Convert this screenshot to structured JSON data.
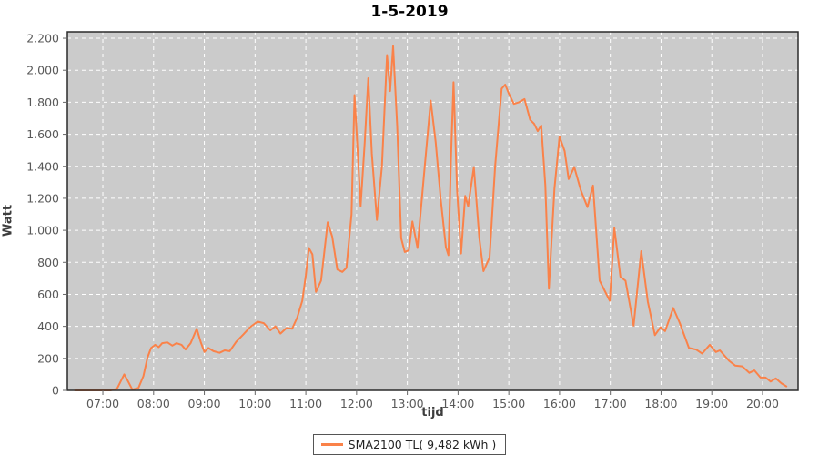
{
  "title": "1-5-2019",
  "legend": {
    "label": "SMA2100 TL( 9,482 kWh )"
  },
  "colors": {
    "series": "#fa8249",
    "plot_background": "#cbcbcb",
    "gridline": "#ffffff",
    "plot_border": "#2b2b2b",
    "tick_label": "#595959",
    "tick_mark": "#666666",
    "page_background": "#ffffff"
  },
  "chart_data": {
    "type": "line",
    "title": "1-5-2019",
    "xlabel": "tijd",
    "ylabel": "Watt",
    "x_unit": "time of day (hours)",
    "y_unit": "Watt",
    "xlim": [
      6.3,
      20.7
    ],
    "ylim": [
      0,
      2240
    ],
    "grid": "white dashed gridlines on gray plot background",
    "legend_position": "bottom-center",
    "x_ticks": [
      {
        "value": 7,
        "label": "07:00"
      },
      {
        "value": 8,
        "label": "08:00"
      },
      {
        "value": 9,
        "label": "09:00"
      },
      {
        "value": 10,
        "label": "10:00"
      },
      {
        "value": 11,
        "label": "11:00"
      },
      {
        "value": 12,
        "label": "12:00"
      },
      {
        "value": 13,
        "label": "13:00"
      },
      {
        "value": 14,
        "label": "14:00"
      },
      {
        "value": 15,
        "label": "15:00"
      },
      {
        "value": 16,
        "label": "16:00"
      },
      {
        "value": 17,
        "label": "17:00"
      },
      {
        "value": 18,
        "label": "18:00"
      },
      {
        "value": 19,
        "label": "19:00"
      },
      {
        "value": 20,
        "label": "20:00"
      }
    ],
    "y_ticks": [
      {
        "value": 0,
        "label": "0"
      },
      {
        "value": 200,
        "label": "200"
      },
      {
        "value": 400,
        "label": "400"
      },
      {
        "value": 600,
        "label": "600"
      },
      {
        "value": 800,
        "label": "800"
      },
      {
        "value": 1000,
        "label": "1.000"
      },
      {
        "value": 1200,
        "label": "1.200"
      },
      {
        "value": 1400,
        "label": "1.400"
      },
      {
        "value": 1600,
        "label": "1.600"
      },
      {
        "value": 1800,
        "label": "1.800"
      },
      {
        "value": 2000,
        "label": "2.000"
      },
      {
        "value": 2200,
        "label": "2.200"
      }
    ],
    "series": [
      {
        "name": "SMA2100 TL( 9,482 kWh )",
        "color": "#fa8249",
        "points": [
          [
            6.45,
            0
          ],
          [
            6.75,
            0
          ],
          [
            7.0,
            0
          ],
          [
            7.15,
            0
          ],
          [
            7.28,
            10
          ],
          [
            7.42,
            100
          ],
          [
            7.5,
            55
          ],
          [
            7.58,
            5
          ],
          [
            7.7,
            15
          ],
          [
            7.8,
            90
          ],
          [
            7.88,
            205
          ],
          [
            7.95,
            265
          ],
          [
            8.03,
            285
          ],
          [
            8.1,
            270
          ],
          [
            8.17,
            295
          ],
          [
            8.27,
            300
          ],
          [
            8.37,
            280
          ],
          [
            8.45,
            295
          ],
          [
            8.55,
            285
          ],
          [
            8.63,
            255
          ],
          [
            8.73,
            295
          ],
          [
            8.85,
            385
          ],
          [
            8.93,
            300
          ],
          [
            9.0,
            240
          ],
          [
            9.08,
            265
          ],
          [
            9.18,
            245
          ],
          [
            9.3,
            235
          ],
          [
            9.4,
            250
          ],
          [
            9.5,
            245
          ],
          [
            9.63,
            305
          ],
          [
            9.77,
            350
          ],
          [
            9.9,
            395
          ],
          [
            10.05,
            430
          ],
          [
            10.17,
            420
          ],
          [
            10.3,
            375
          ],
          [
            10.4,
            400
          ],
          [
            10.5,
            355
          ],
          [
            10.62,
            390
          ],
          [
            10.73,
            385
          ],
          [
            10.83,
            455
          ],
          [
            10.93,
            560
          ],
          [
            11.0,
            720
          ],
          [
            11.06,
            890
          ],
          [
            11.13,
            850
          ],
          [
            11.2,
            615
          ],
          [
            11.3,
            685
          ],
          [
            11.43,
            1050
          ],
          [
            11.52,
            960
          ],
          [
            11.62,
            755
          ],
          [
            11.72,
            740
          ],
          [
            11.8,
            765
          ],
          [
            11.9,
            1100
          ],
          [
            11.96,
            1845
          ],
          [
            12.02,
            1500
          ],
          [
            12.08,
            1150
          ],
          [
            12.16,
            1550
          ],
          [
            12.23,
            1950
          ],
          [
            12.3,
            1480
          ],
          [
            12.4,
            1065
          ],
          [
            12.5,
            1400
          ],
          [
            12.6,
            2095
          ],
          [
            12.66,
            1870
          ],
          [
            12.72,
            2150
          ],
          [
            12.8,
            1650
          ],
          [
            12.88,
            950
          ],
          [
            12.95,
            865
          ],
          [
            13.03,
            875
          ],
          [
            13.1,
            1055
          ],
          [
            13.2,
            890
          ],
          [
            13.32,
            1320
          ],
          [
            13.46,
            1810
          ],
          [
            13.56,
            1550
          ],
          [
            13.66,
            1190
          ],
          [
            13.76,
            895
          ],
          [
            13.81,
            845
          ],
          [
            13.86,
            1450
          ],
          [
            13.91,
            1925
          ],
          [
            13.98,
            1250
          ],
          [
            14.06,
            855
          ],
          [
            14.14,
            1215
          ],
          [
            14.2,
            1150
          ],
          [
            14.31,
            1395
          ],
          [
            14.42,
            950
          ],
          [
            14.5,
            745
          ],
          [
            14.62,
            830
          ],
          [
            14.73,
            1400
          ],
          [
            14.86,
            1885
          ],
          [
            14.93,
            1910
          ],
          [
            15.0,
            1855
          ],
          [
            15.1,
            1790
          ],
          [
            15.2,
            1800
          ],
          [
            15.31,
            1820
          ],
          [
            15.42,
            1690
          ],
          [
            15.5,
            1665
          ],
          [
            15.57,
            1620
          ],
          [
            15.64,
            1655
          ],
          [
            15.72,
            1280
          ],
          [
            15.79,
            635
          ],
          [
            15.9,
            1260
          ],
          [
            16.0,
            1585
          ],
          [
            16.1,
            1495
          ],
          [
            16.18,
            1320
          ],
          [
            16.29,
            1395
          ],
          [
            16.42,
            1250
          ],
          [
            16.55,
            1145
          ],
          [
            16.66,
            1280
          ],
          [
            16.79,
            685
          ],
          [
            16.99,
            560
          ],
          [
            17.08,
            1015
          ],
          [
            17.2,
            710
          ],
          [
            17.3,
            685
          ],
          [
            17.46,
            405
          ],
          [
            17.61,
            870
          ],
          [
            17.74,
            555
          ],
          [
            17.88,
            345
          ],
          [
            17.99,
            395
          ],
          [
            18.08,
            370
          ],
          [
            18.24,
            515
          ],
          [
            18.37,
            420
          ],
          [
            18.55,
            265
          ],
          [
            18.69,
            255
          ],
          [
            18.81,
            230
          ],
          [
            18.96,
            285
          ],
          [
            19.08,
            240
          ],
          [
            19.16,
            250
          ],
          [
            19.34,
            185
          ],
          [
            19.46,
            155
          ],
          [
            19.6,
            150
          ],
          [
            19.74,
            110
          ],
          [
            19.84,
            125
          ],
          [
            19.96,
            80
          ],
          [
            20.06,
            80
          ],
          [
            20.16,
            55
          ],
          [
            20.26,
            75
          ],
          [
            20.37,
            45
          ],
          [
            20.47,
            25
          ]
        ]
      }
    ]
  }
}
